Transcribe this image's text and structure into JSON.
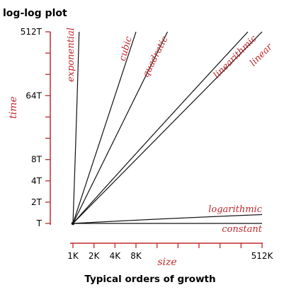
{
  "colors": {
    "axis": "#c0282d",
    "curve": "#111111",
    "label": "#c0282d",
    "text": "#000000"
  },
  "chart_data": {
    "type": "line",
    "title": "log-log plot",
    "caption": "Typical orders of growth",
    "xlabel": "size",
    "ylabel": "time",
    "scale": "log-log",
    "x_ticks": [
      {
        "value": 1,
        "label": "1K"
      },
      {
        "value": 2,
        "label": "2K"
      },
      {
        "value": 4,
        "label": "4K"
      },
      {
        "value": 8,
        "label": "8K"
      },
      {
        "value": 16,
        "label": ""
      },
      {
        "value": 32,
        "label": ""
      },
      {
        "value": 64,
        "label": ""
      },
      {
        "value": 128,
        "label": ""
      },
      {
        "value": 256,
        "label": ""
      },
      {
        "value": 512,
        "label": "512K"
      }
    ],
    "y_ticks": [
      {
        "value": 1,
        "label": "T"
      },
      {
        "value": 2,
        "label": "2T"
      },
      {
        "value": 4,
        "label": "4T"
      },
      {
        "value": 8,
        "label": "8T"
      },
      {
        "value": 16,
        "label": ""
      },
      {
        "value": 32,
        "label": ""
      },
      {
        "value": 64,
        "label": "64T"
      },
      {
        "value": 128,
        "label": ""
      },
      {
        "value": 256,
        "label": ""
      },
      {
        "value": 512,
        "label": "512T"
      }
    ],
    "xlim": [
      1,
      512
    ],
    "ylim": [
      1,
      512
    ],
    "series": [
      {
        "name": "constant",
        "kind": "constant"
      },
      {
        "name": "logarithmic",
        "kind": "logarithmic"
      },
      {
        "name": "linear",
        "kind": "linear"
      },
      {
        "name": "linearithmic",
        "kind": "linearithmic"
      },
      {
        "name": "quadratic",
        "kind": "quadratic"
      },
      {
        "name": "cubic",
        "kind": "cubic"
      },
      {
        "name": "exponential",
        "kind": "exponential"
      }
    ]
  }
}
